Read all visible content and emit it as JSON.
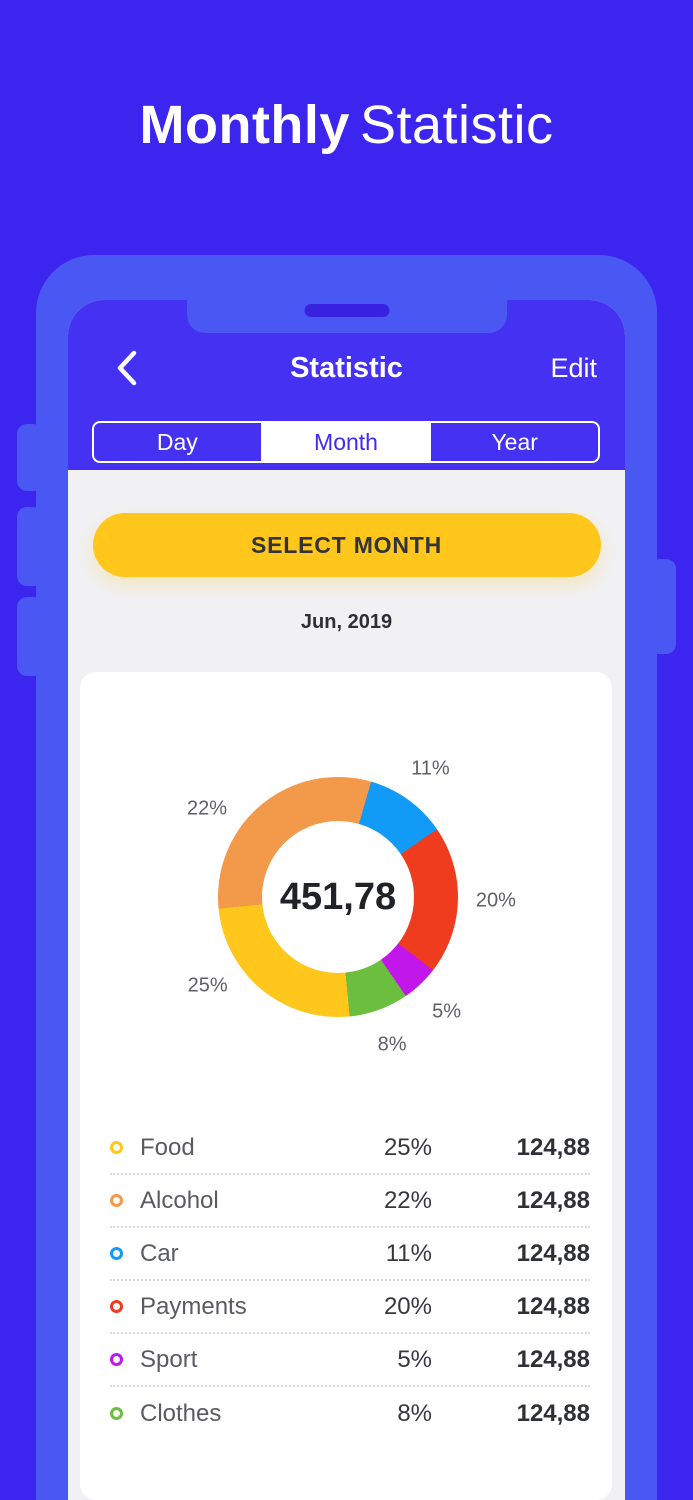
{
  "colors": {
    "background": "#3B25EF",
    "phone_frame": "#4A58F3",
    "header": "#4531F2",
    "accent_yellow": "#FFC61B",
    "content_bg": "#F1F1F4"
  },
  "page": {
    "title_bold": "Monthly",
    "title_light": "Statistic"
  },
  "header": {
    "title": "Statistic",
    "edit_label": "Edit"
  },
  "tabs": {
    "selected": "Month",
    "items": [
      {
        "label": "Day"
      },
      {
        "label": "Month"
      },
      {
        "label": "Year"
      }
    ]
  },
  "controls": {
    "select_month_label": "SELECT MONTH",
    "period_label": "Jun, 2019"
  },
  "chart_data": {
    "type": "pie",
    "center_total": "451,78",
    "unit": "%",
    "start_angle_deg": 16,
    "categories": [
      "Car",
      "Payments",
      "Sport",
      "Clothes",
      "Food",
      "Alcohol"
    ],
    "values": [
      11,
      20,
      5,
      8,
      25,
      22
    ],
    "colors": [
      "#129BF6",
      "#F03C1E",
      "#C217EA",
      "#6CBE3F",
      "#FFC61B",
      "#F2994A"
    ],
    "legend_position": "bottom",
    "legend": [
      {
        "label": "Food",
        "percent": "25%",
        "amount": "124,88",
        "color": "#FFC61B"
      },
      {
        "label": "Alcohol",
        "percent": "22%",
        "amount": "124,88",
        "color": "#F2994A"
      },
      {
        "label": "Car",
        "percent": "11%",
        "amount": "124,88",
        "color": "#129BF6"
      },
      {
        "label": "Payments",
        "percent": "20%",
        "amount": "124,88",
        "color": "#F03C1E"
      },
      {
        "label": "Sport",
        "percent": "5%",
        "amount": "124,88",
        "color": "#C217EA"
      },
      {
        "label": "Clothes",
        "percent": "8%",
        "amount": "124,88",
        "color": "#6CBE3F"
      }
    ]
  }
}
